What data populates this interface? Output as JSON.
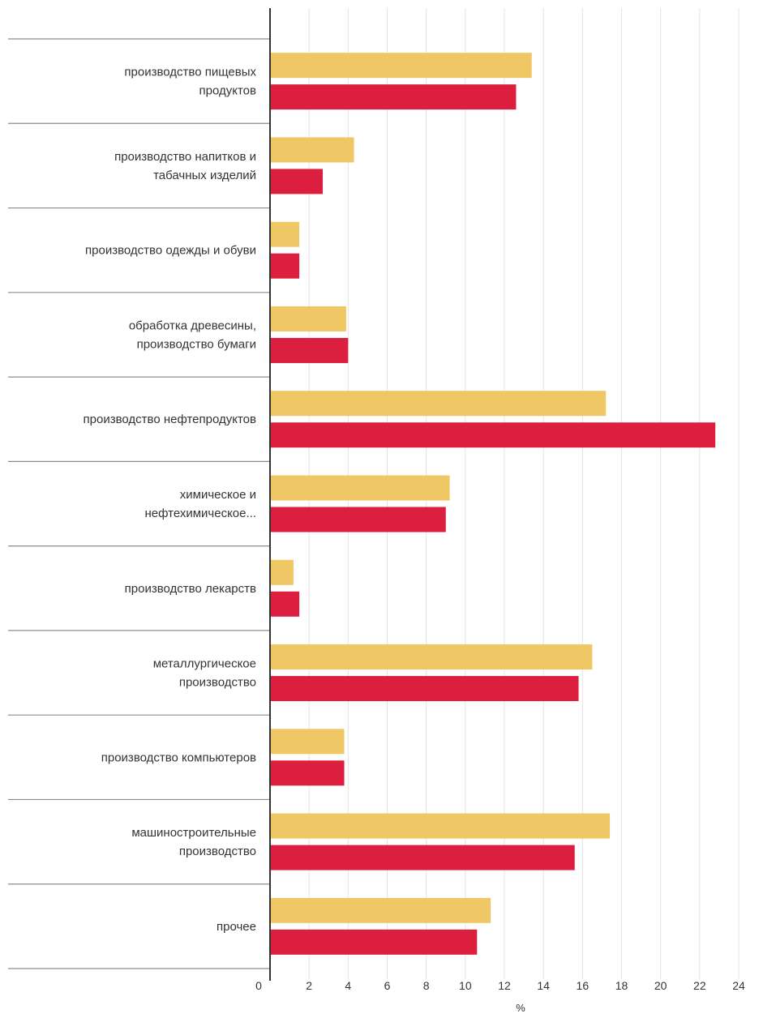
{
  "chart_data": {
    "type": "bar",
    "orientation": "horizontal",
    "categories": [
      [
        "производство пищевых",
        "продуктов"
      ],
      [
        "производство напитков и",
        "табачных изделий"
      ],
      [
        "производство одежды и обуви"
      ],
      [
        "обработка древесины,",
        "производство бумаги"
      ],
      [
        "производство нефтепродуктов"
      ],
      [
        "химическое и",
        "нефтехимическое..."
      ],
      [
        "производство лекарств"
      ],
      [
        "металлургическое",
        "производство"
      ],
      [
        "производство компьютеров"
      ],
      [
        "машиностроительные",
        "производство"
      ],
      [
        "прочее"
      ]
    ],
    "series": [
      {
        "color": "#EFC865",
        "values": [
          13.4,
          4.3,
          1.5,
          3.9,
          17.2,
          9.2,
          1.2,
          16.5,
          3.8,
          17.4,
          11.3
        ]
      },
      {
        "color": "#DC1F3F",
        "values": [
          12.6,
          2.7,
          1.5,
          4.0,
          22.8,
          9.0,
          1.5,
          15.8,
          3.8,
          15.6,
          10.6
        ]
      }
    ],
    "x_ticks": [
      "0",
      "2",
      "4",
      "6",
      "8",
      "10",
      "12",
      "14",
      "16",
      "18",
      "20",
      "22",
      "24"
    ],
    "xlim": [
      0,
      24
    ],
    "xlabel": "%",
    "title": "",
    "legend": "none",
    "grid": "vertical"
  }
}
